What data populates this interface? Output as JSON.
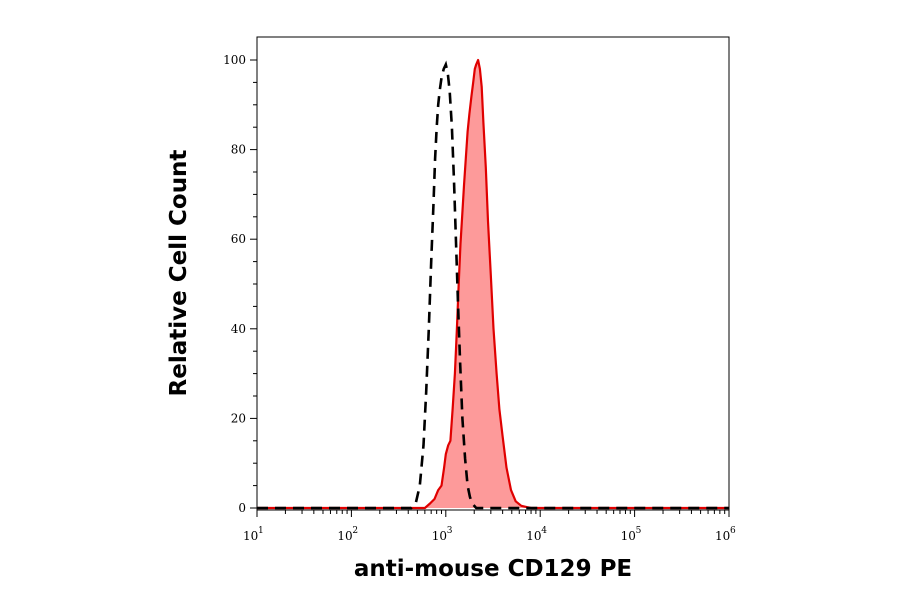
{
  "chart_data": {
    "type": "area",
    "title": "",
    "xlabel": "anti-mouse CD129 PE",
    "ylabel": "Relative Cell Count",
    "xscale": "log",
    "xlim": [
      10,
      1000000
    ],
    "ylim": [
      0,
      100
    ],
    "x_ticks": [
      {
        "base": "10",
        "exp": "1",
        "value": 10
      },
      {
        "base": "10",
        "exp": "2",
        "value": 100
      },
      {
        "base": "10",
        "exp": "3",
        "value": 1000
      },
      {
        "base": "10",
        "exp": "4",
        "value": 10000
      },
      {
        "base": "10",
        "exp": "5",
        "value": 100000
      },
      {
        "base": "10",
        "exp": "6",
        "value": 1000000
      }
    ],
    "y_ticks": [
      "0",
      "20",
      "40",
      "60",
      "80",
      "100"
    ],
    "grid": false,
    "legend": "none",
    "series": [
      {
        "style": "dashed-black-line",
        "color": "#000000",
        "x": [
          10,
          430,
          480,
          530,
          580,
          620,
          660,
          700,
          740,
          770,
          800,
          830,
          860,
          900,
          950,
          1000,
          1050,
          1100,
          1160,
          1220,
          1290,
          1350,
          1420,
          1500,
          1600,
          1700,
          1800,
          1900,
          2000,
          2100,
          2300,
          1000000
        ],
        "y": [
          0,
          0,
          1,
          5,
          14,
          26,
          40,
          55,
          68,
          78,
          85,
          90,
          93,
          96,
          98,
          99,
          97,
          93,
          85,
          73,
          58,
          45,
          32,
          20,
          11,
          5,
          2.5,
          1,
          0.5,
          0,
          0,
          0
        ]
      },
      {
        "style": "filled-red",
        "color": "#e00000",
        "fill": "#fd9a9a",
        "x": [
          10,
          600,
          680,
          760,
          830,
          900,
          960,
          1000,
          1060,
          1120,
          1180,
          1250,
          1310,
          1370,
          1430,
          1500,
          1560,
          1630,
          1700,
          1780,
          1870,
          1950,
          2030,
          2100,
          2200,
          2300,
          2400,
          2500,
          2650,
          2800,
          3000,
          3200,
          3450,
          3700,
          4000,
          4400,
          4900,
          5500,
          6300,
          7200,
          8000,
          1000000
        ],
        "y": [
          0,
          0,
          1,
          2,
          4,
          5,
          9,
          12,
          14,
          15,
          22,
          30,
          40,
          50,
          59,
          66,
          72,
          78,
          84,
          88,
          92,
          95,
          98,
          99,
          100,
          98,
          94,
          86,
          76,
          64,
          52,
          40,
          30,
          22,
          16,
          9,
          4,
          1.5,
          0.5,
          0.2,
          0,
          0
        ]
      }
    ]
  }
}
